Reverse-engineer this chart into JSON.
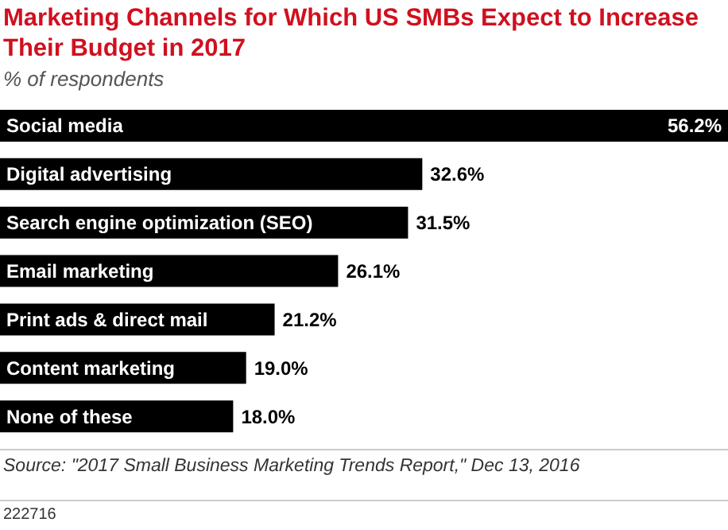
{
  "chart_data": {
    "type": "bar",
    "orientation": "horizontal",
    "title": "Marketing Channels for Which US SMBs Expect to Increase Their Budget in 2017",
    "subtitle": "% of respondents",
    "categories": [
      "Social media",
      "Digital advertising",
      "Search engine optimization (SEO)",
      "Email marketing",
      "Print ads & direct mail",
      "Content marketing",
      "None of these"
    ],
    "values": [
      56.2,
      32.6,
      31.5,
      26.1,
      21.2,
      19.0,
      18.0
    ],
    "value_labels": [
      "56.2%",
      "32.6%",
      "31.5%",
      "26.1%",
      "21.2%",
      "19.0%",
      "18.0%"
    ],
    "color": "#000000",
    "annotations": [
      "Source: \"2017 Small Business Marketing Trends Report,\" Dec 13, 2016",
      "222716"
    ]
  }
}
